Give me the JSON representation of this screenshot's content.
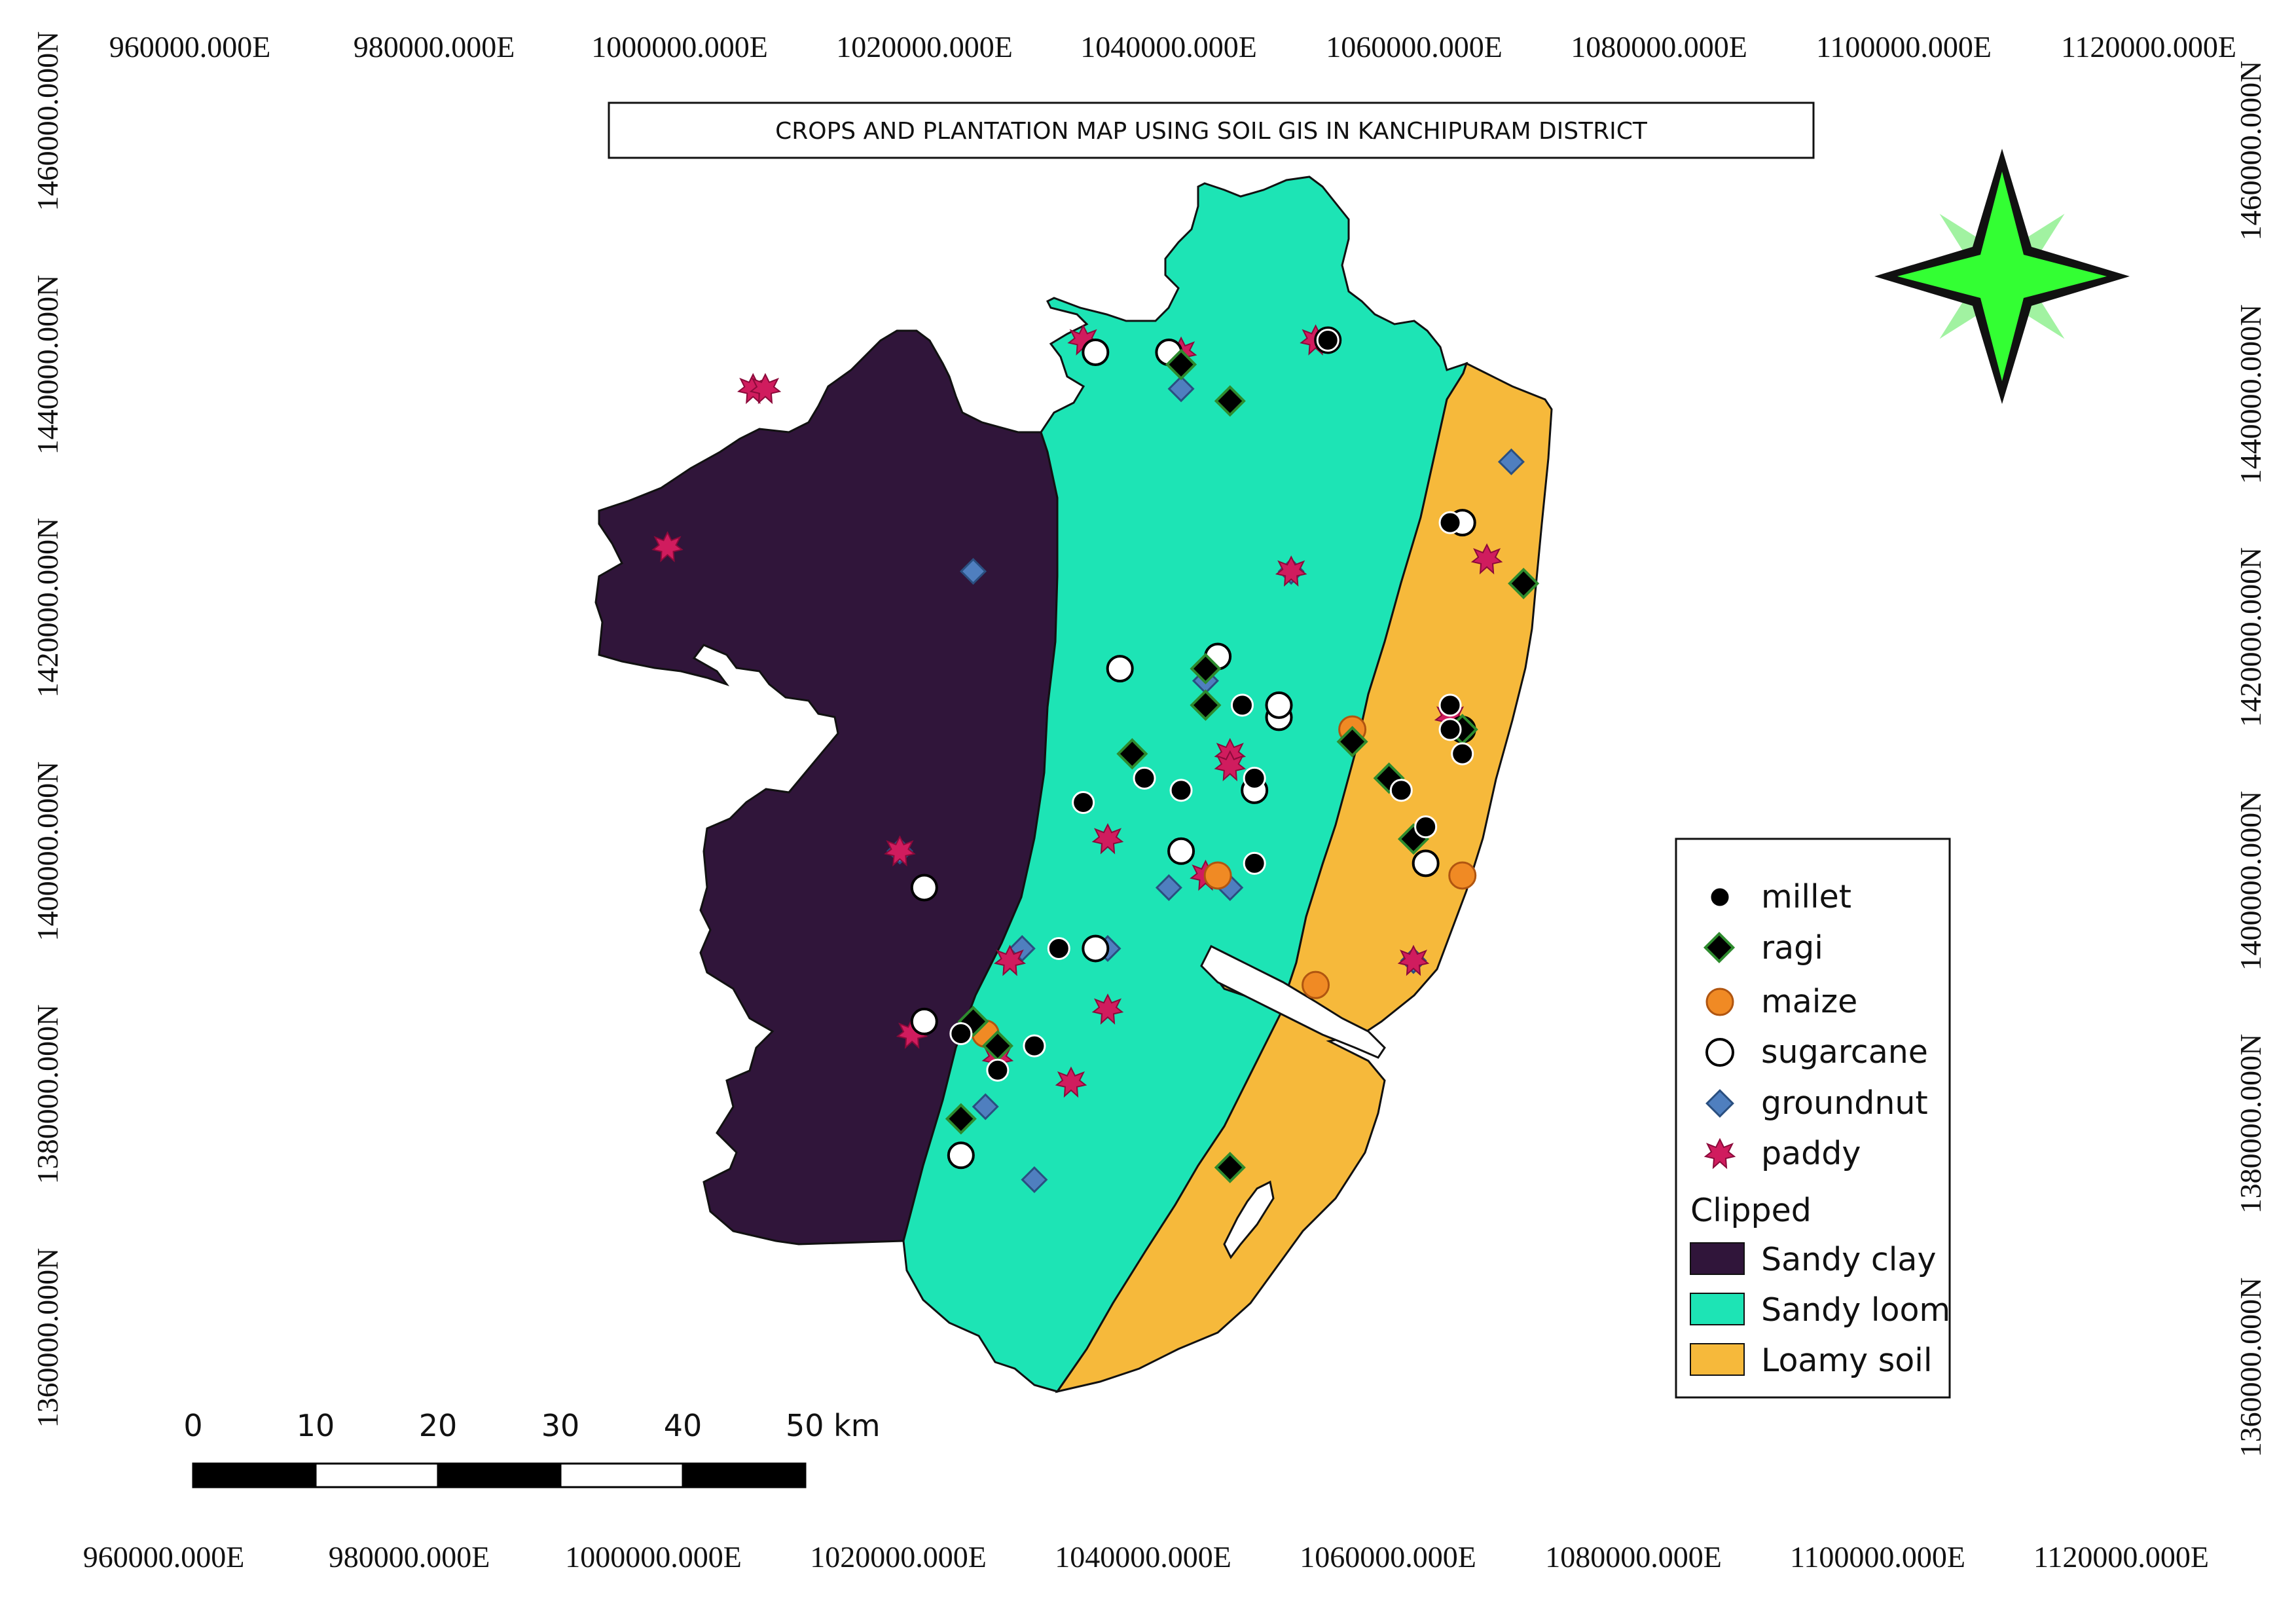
{
  "title": "CROPS AND PLANTATION MAP USING SOIL GIS IN KANCHIPURAM DISTRICT",
  "grid_labels": {
    "easting": [
      "960000.000E",
      "980000.000E",
      "1000000.000E",
      "1020000.000E",
      "1040000.000E",
      "1060000.000E",
      "1080000.000E",
      "1100000.000E",
      "1120000.000E"
    ],
    "northing_left": [
      "1460000.000N",
      "1440000.000N",
      "1420000.000N",
      "1400000.000N",
      "1380000.000N",
      "1360000.000N"
    ],
    "northing_right": [
      "1460000.000N",
      "1440000.000N",
      "1420000.000N",
      "1400000.000N",
      "1380000.000N",
      "1360000.000N"
    ]
  },
  "legend": {
    "crops": [
      {
        "label": "millet",
        "symbol": "circle",
        "fill": "#000000"
      },
      {
        "label": "ragi",
        "symbol": "diamond",
        "fill": "#000000"
      },
      {
        "label": "maize",
        "symbol": "circle",
        "fill": "#f08a24"
      },
      {
        "label": "sugarcane",
        "symbol": "circle",
        "fill": "#ffffff"
      },
      {
        "label": "groundnut",
        "symbol": "diamond",
        "fill": "#4f7fbf"
      },
      {
        "label": "paddy",
        "symbol": "star",
        "fill": "#d01c5e"
      }
    ],
    "layer_title": "Clipped",
    "soils": [
      {
        "label": "Sandy clay",
        "color": "#30153a"
      },
      {
        "label": "Sandy loom",
        "color": "#1de4b5"
      },
      {
        "label": "Loamy soil",
        "color": "#f6b93b"
      }
    ]
  },
  "scale_bar": {
    "labels": [
      "0",
      "10",
      "20",
      "30",
      "40",
      "50 km"
    ]
  },
  "north_arrow": {
    "fill": "#33ff33",
    "halo": "#90f090"
  },
  "colors": {
    "sandy_clay": "#30153a",
    "sandy_loom": "#1de4b5",
    "loamy_soil": "#f6b93b"
  },
  "points": {
    "millet": [
      [
        1053,
        1442
      ],
      [
        1063,
        1427
      ],
      [
        1063,
        1412
      ],
      [
        1063,
        1410
      ],
      [
        1064,
        1408
      ],
      [
        1038,
        1406
      ],
      [
        1047,
        1406
      ],
      [
        1033,
        1404
      ],
      [
        1059,
        1405
      ],
      [
        1061,
        1402
      ],
      [
        1047,
        1399
      ],
      [
        1031,
        1392
      ],
      [
        1023,
        1385
      ],
      [
        1026,
        1382
      ],
      [
        1029,
        1384
      ],
      [
        1046,
        1412
      ],
      [
        1041,
        1405
      ]
    ],
    "ragi": [
      [
        1041,
        1440
      ],
      [
        1045,
        1437
      ],
      [
        1069,
        1422
      ],
      [
        1043,
        1415
      ],
      [
        1043,
        1412
      ],
      [
        1037,
        1408
      ],
      [
        1055,
        1409
      ],
      [
        1058,
        1406
      ],
      [
        1060,
        1401
      ],
      [
        1064,
        1410
      ],
      [
        1024,
        1386
      ],
      [
        1026,
        1384
      ],
      [
        1023,
        1378
      ],
      [
        1045,
        1374
      ]
    ],
    "maize": [
      [
        1044,
        1398
      ],
      [
        1055,
        1410
      ],
      [
        1064,
        1398
      ],
      [
        1052,
        1389
      ],
      [
        1025,
        1385
      ]
    ],
    "sugarcane": [
      [
        1034,
        1441
      ],
      [
        1040,
        1441
      ],
      [
        1053,
        1442
      ],
      [
        1064,
        1427
      ],
      [
        1036,
        1415
      ],
      [
        1044,
        1416
      ],
      [
        1049,
        1411
      ],
      [
        1047,
        1405
      ],
      [
        1041,
        1400
      ],
      [
        1020,
        1397
      ],
      [
        1034,
        1392
      ],
      [
        1020,
        1386
      ],
      [
        1023,
        1375
      ],
      [
        1061,
        1399
      ],
      [
        1064,
        1410
      ],
      [
        1049,
        1412
      ]
    ],
    "groundnut": [
      [
        1041,
        1438
      ],
      [
        1024,
        1423
      ],
      [
        1068,
        1432
      ],
      [
        1050,
        1423
      ],
      [
        1043,
        1414
      ],
      [
        1018,
        1400
      ],
      [
        1040,
        1397
      ],
      [
        1028,
        1392
      ],
      [
        1035,
        1392
      ],
      [
        1025,
        1379
      ],
      [
        1029,
        1373
      ],
      [
        1060,
        1391
      ],
      [
        1045,
        1397
      ]
    ],
    "paddy": [
      [
        1033,
        1442
      ],
      [
        1041,
        1441
      ],
      [
        1052,
        1442
      ],
      [
        1006,
        1438
      ],
      [
        1007,
        1438
      ],
      [
        999,
        1425
      ],
      [
        1050,
        1423
      ],
      [
        1066,
        1424
      ],
      [
        1063,
        1411
      ],
      [
        1045,
        1408
      ],
      [
        1045,
        1407
      ],
      [
        1035,
        1401
      ],
      [
        1018,
        1400
      ],
      [
        1043,
        1398
      ],
      [
        1027,
        1391
      ],
      [
        1027,
        1391
      ],
      [
        1035,
        1387
      ],
      [
        1019,
        1385
      ],
      [
        1026,
        1383
      ],
      [
        1032,
        1381
      ],
      [
        1060,
        1391
      ]
    ]
  }
}
